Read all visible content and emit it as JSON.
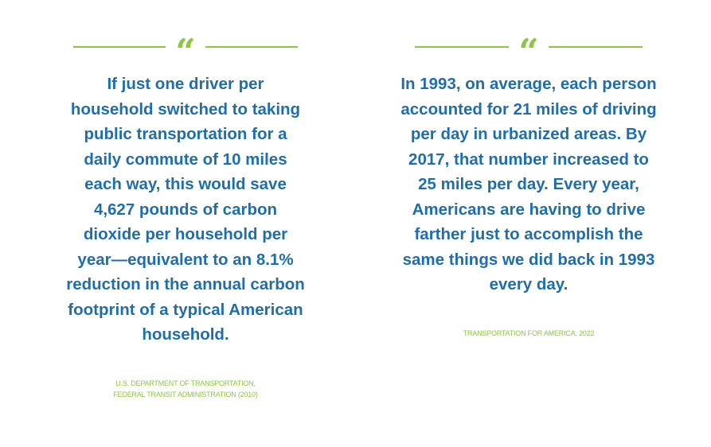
{
  "quotes": [
    {
      "mark": "“",
      "text": "If just one driver per household switched to taking public transportation for a daily commute of 10 miles each way, this would save 4,627 pounds of carbon dioxide per household per year—equivalent to an 8.1% reduction in the annual carbon footprint of a typical American household.",
      "source_lines": [
        "U.S. DEPARTMENT OF TRANSPORTATION,",
        "FEDERAL TRANSIT ADMINISTRATION (2010)"
      ]
    },
    {
      "mark": "“",
      "text": "In 1993, on average, each person accounted for 21 miles of driving per day in urbanized areas. By 2017, that number increased to 25 miles per day. Every year, Americans are having to drive farther just to accomplish the same things we did back in 1993 every day.",
      "source_lines": [
        "TRANSPORTATION FOR AMERICA, 2022"
      ]
    }
  ],
  "colors": {
    "accent_green": "#8cc63f",
    "text_blue": "#1f6eaa"
  }
}
